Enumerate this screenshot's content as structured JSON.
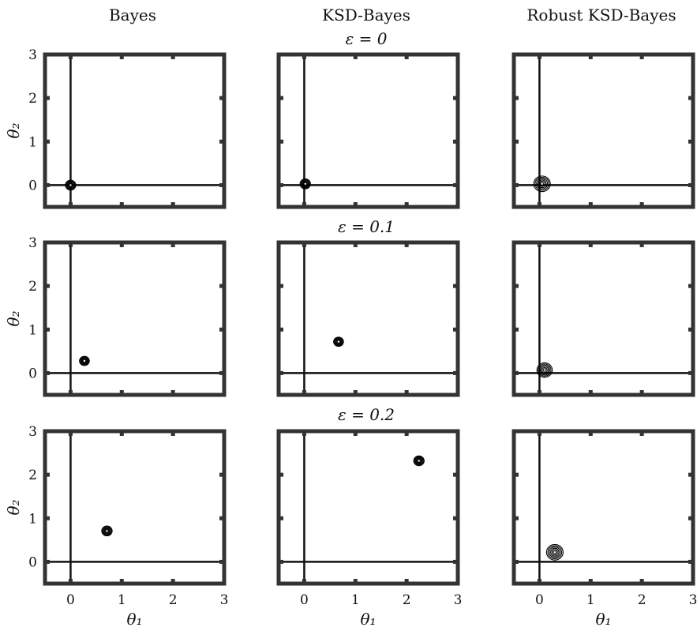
{
  "columns": [
    "Bayes",
    "KSD-Bayes",
    "Robust KSD-Bayes"
  ],
  "rows": [
    "ε = 0",
    "ε = 0.1",
    "ε = 0.2"
  ],
  "axis_labels": {
    "x": "θ₁",
    "y": "θ₂"
  },
  "x_ticks": [
    "0",
    "1",
    "2",
    "3"
  ],
  "y_ticks": [
    "0",
    "1",
    "2",
    "3"
  ],
  "colors": {
    "frame": "#333333",
    "contour": "#000000",
    "background": "#ffffff"
  },
  "chart_data": {
    "type": "contour",
    "xlim": [
      -0.5,
      3
    ],
    "ylim": [
      -0.5,
      3
    ],
    "grid": false,
    "legend": "none",
    "reference_lines": {
      "x": 0,
      "y": 0
    },
    "panels": [
      {
        "row": "ε = 0",
        "column": "Bayes",
        "center": [
          0.0,
          0.0
        ],
        "spread": 0.17,
        "rings": 6
      },
      {
        "row": "ε = 0",
        "column": "KSD-Bayes",
        "center": [
          0.02,
          0.03
        ],
        "spread": 0.17,
        "rings": 6
      },
      {
        "row": "ε = 0",
        "column": "Robust KSD-Bayes",
        "center": [
          0.05,
          0.03
        ],
        "spread": 0.27,
        "rings": 6
      },
      {
        "row": "ε = 0.1",
        "column": "Bayes",
        "center": [
          0.27,
          0.28
        ],
        "spread": 0.16,
        "rings": 6
      },
      {
        "row": "ε = 0.1",
        "column": "KSD-Bayes",
        "center": [
          0.67,
          0.72
        ],
        "spread": 0.16,
        "rings": 6
      },
      {
        "row": "ε = 0.1",
        "column": "Robust KSD-Bayes",
        "center": [
          0.1,
          0.07
        ],
        "spread": 0.25,
        "rings": 6
      },
      {
        "row": "ε = 0.2",
        "column": "Bayes",
        "center": [
          0.71,
          0.71
        ],
        "spread": 0.17,
        "rings": 6
      },
      {
        "row": "ε = 0.2",
        "column": "KSD-Bayes",
        "center": [
          2.24,
          2.32
        ],
        "spread": 0.17,
        "rings": 6
      },
      {
        "row": "ε = 0.2",
        "column": "Robust KSD-Bayes",
        "center": [
          0.3,
          0.22
        ],
        "spread": 0.27,
        "rings": 6
      }
    ]
  }
}
